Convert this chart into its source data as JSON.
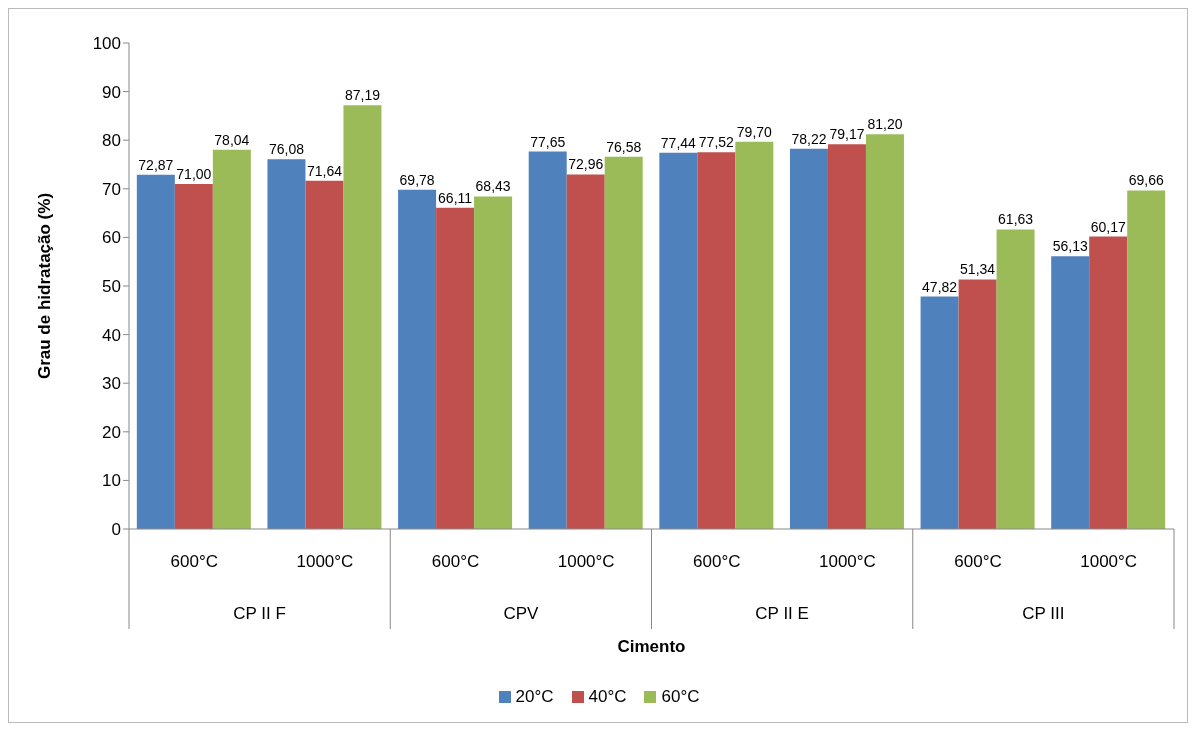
{
  "chart_data": {
    "type": "bar",
    "xlabel": "Cimento",
    "ylabel": "Grau de hidratação (%)",
    "categories": [
      "600°C",
      "1000°C",
      "600°C",
      "1000°C",
      "600°C",
      "1000°C",
      "600°C",
      "1000°C"
    ],
    "annotations": [
      "CP II F",
      "CPV",
      "CP II E",
      "CP III"
    ],
    "series": [
      {
        "name": "20°C",
        "color": "#4f81bd",
        "values": [
          72.87,
          76.08,
          69.78,
          77.65,
          77.44,
          78.22,
          47.82,
          56.13
        ],
        "value_labels": [
          "72,87",
          "76,08",
          "69,78",
          "77,65",
          "77,44",
          "78,22",
          "47,82",
          "56,13"
        ]
      },
      {
        "name": "40°C",
        "color": "#c0504d",
        "values": [
          71.0,
          71.64,
          66.11,
          72.96,
          77.52,
          79.17,
          51.34,
          60.17
        ],
        "value_labels": [
          "71,00",
          "71,64",
          "66,11",
          "72,96",
          "77,52",
          "79,17",
          "51,34",
          "60,17"
        ]
      },
      {
        "name": "60°C",
        "color": "#9bbb59",
        "values": [
          78.04,
          87.19,
          68.43,
          76.58,
          79.7,
          81.2,
          61.63,
          69.66
        ],
        "value_labels": [
          "78,04",
          "87,19",
          "68,43",
          "76,58",
          "79,70",
          "81,20",
          "61,63",
          "69,66"
        ]
      }
    ],
    "ylim": [
      0,
      100
    ],
    "yticks": [
      0,
      10,
      20,
      30,
      40,
      50,
      60,
      70,
      80,
      90,
      100
    ],
    "grid": false,
    "legend": "bottom"
  }
}
